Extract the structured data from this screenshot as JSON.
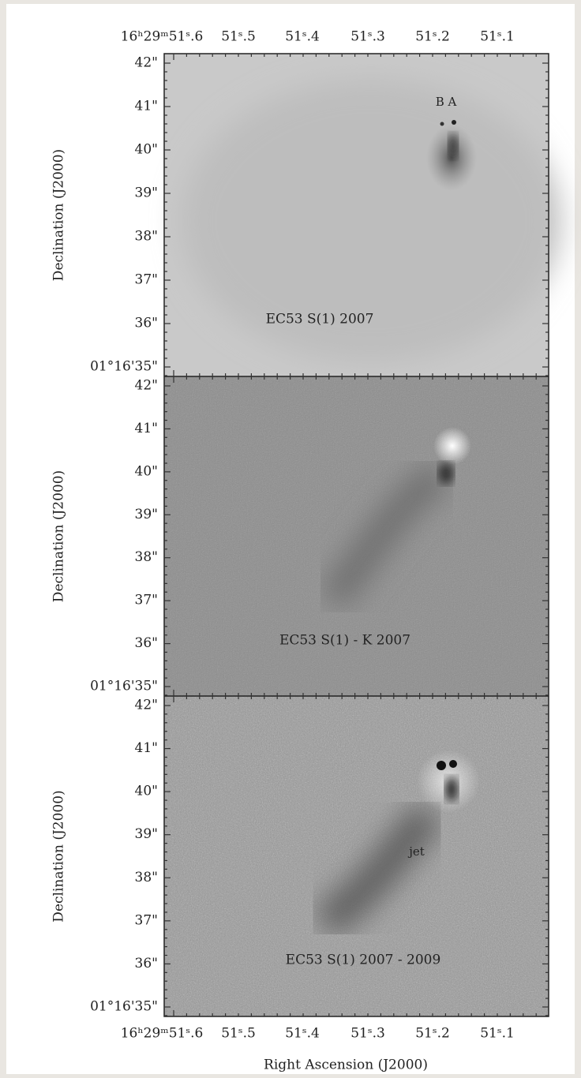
{
  "figure": {
    "ra_labels_top": [
      "16ʰ29ᵐ51ˢ.6",
      "51ˢ.5",
      "51ˢ.4",
      "51ˢ.3",
      "51ˢ.2",
      "51ˢ.1"
    ],
    "ra_labels_bottom": [
      "16ʰ29ᵐ51ˢ.6",
      "51ˢ.5",
      "51ˢ.4",
      "51ˢ.3",
      "51ˢ.2",
      "51ˢ.1"
    ],
    "x_axis_label": "Right Ascension (J2000)",
    "panels": [
      {
        "y_axis_label": "Declination (J2000)",
        "dec_labels": [
          "42\"",
          "41\"",
          "40\"",
          "39\"",
          "38\"",
          "37\"",
          "36\"",
          "01°16'35\""
        ],
        "caption": "EC53 S(1) 2007",
        "annotation": "B A"
      },
      {
        "y_axis_label": "Declination (J2000)",
        "dec_labels": [
          "42\"",
          "41\"",
          "40\"",
          "39\"",
          "38\"",
          "37\"",
          "36\"",
          "01°16'35\""
        ],
        "caption": "EC53 S(1) - K 2007"
      },
      {
        "y_axis_label": "Declination (J2000)",
        "dec_labels": [
          "42\"",
          "41\"",
          "40\"",
          "39\"",
          "38\"",
          "37\"",
          "36\"",
          "01°16'35\""
        ],
        "caption": "EC53 S(1) 2007 - 2009",
        "annotation": "jet"
      }
    ]
  }
}
